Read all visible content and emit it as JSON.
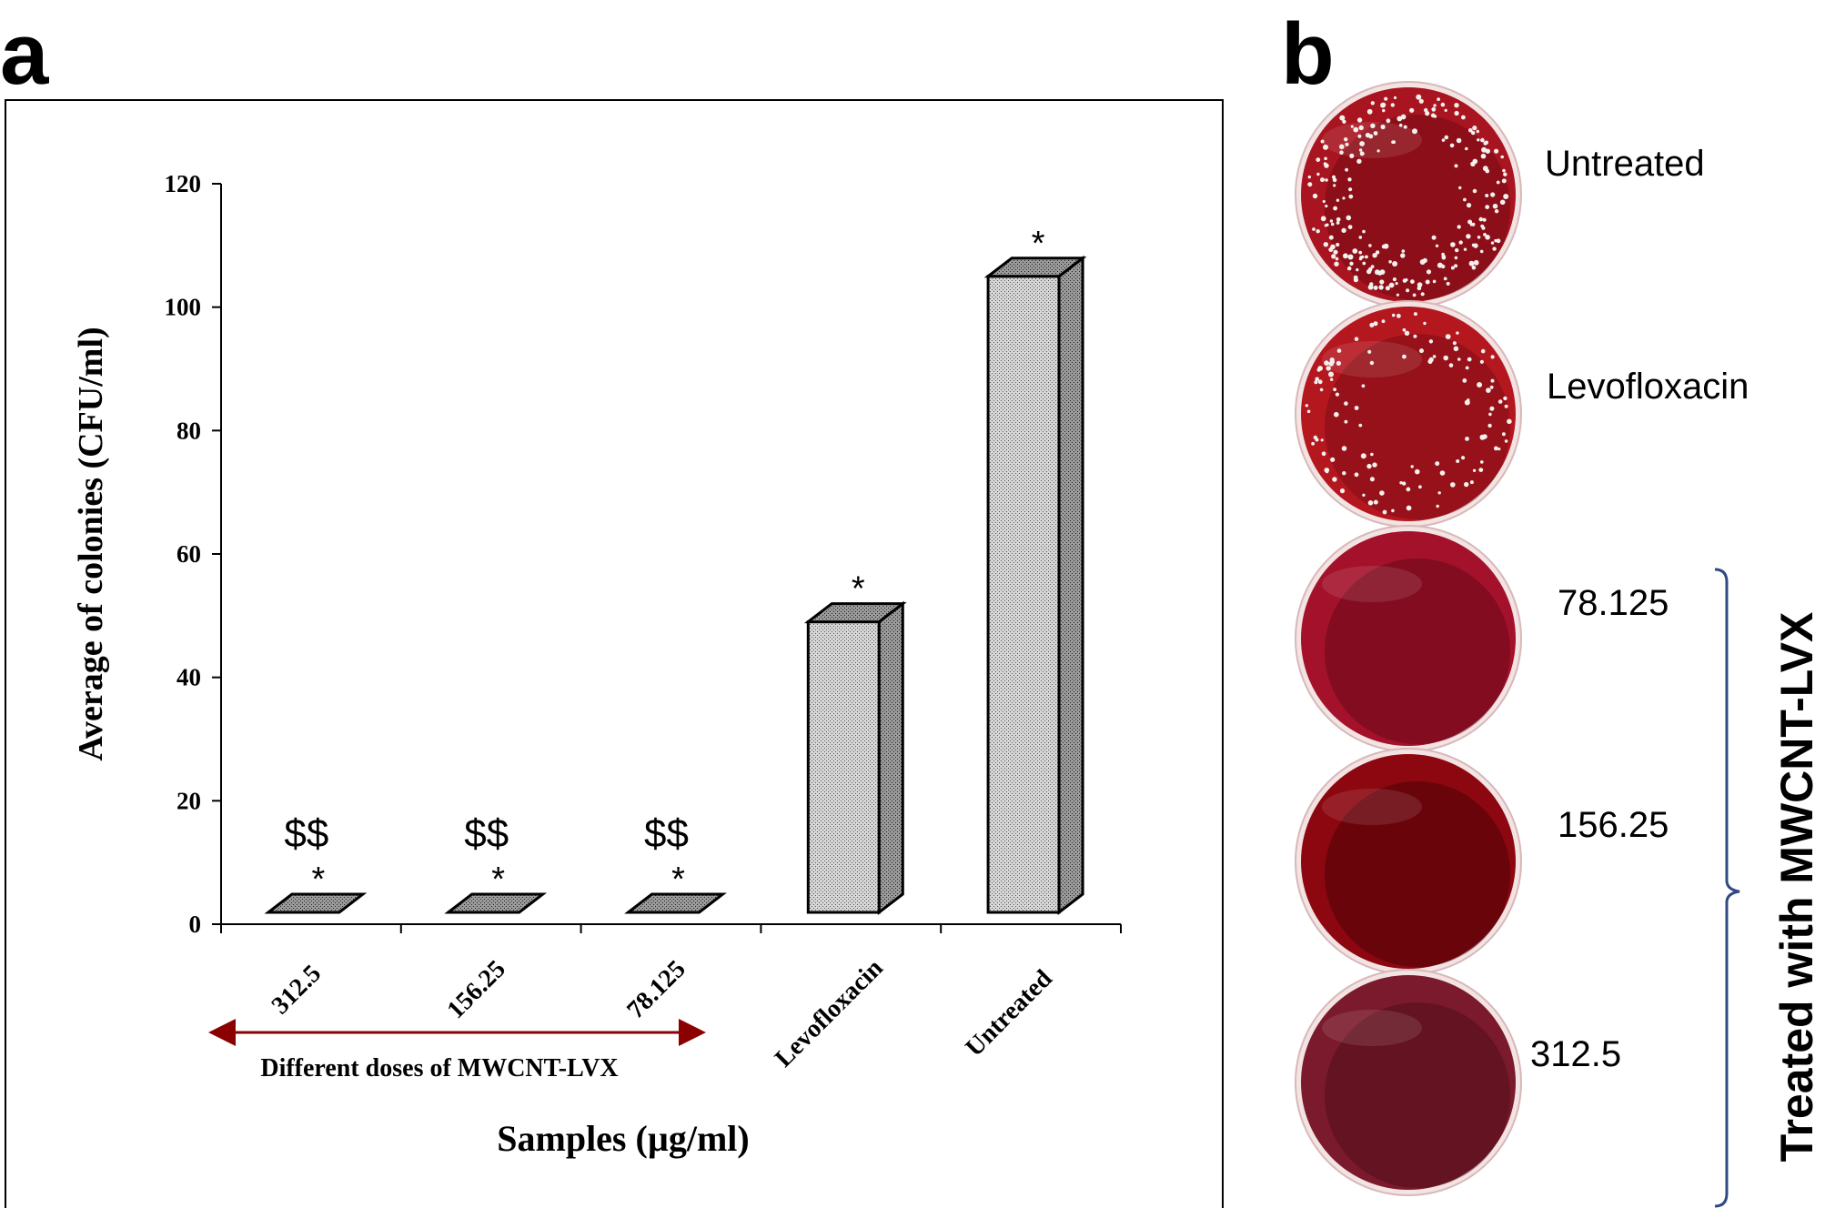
{
  "panel_a": {
    "letter": "a"
  },
  "panel_b": {
    "letter": "b",
    "plates": [
      {
        "label": "Untreated",
        "tone": "#a8141f",
        "dark": "#6a0710",
        "colonies": 230,
        "seed": 7
      },
      {
        "label": "Levofloxacin",
        "tone": "#b5171f",
        "dark": "#720a12",
        "colonies": 120,
        "seed": 19
      },
      {
        "label": "78.125",
        "tone": "#a3112a",
        "dark": "#5e0716",
        "colonies": 0,
        "seed": 3
      },
      {
        "label": "156.25",
        "tone": "#8c0710",
        "dark": "#3f0206",
        "colonies": 0,
        "seed": 5
      },
      {
        "label": "312.5",
        "tone": "#7a1a2c",
        "dark": "#4a0a16",
        "colonies": 0,
        "seed": 11
      }
    ],
    "bracket_label": "Treated with MWCNT-LVX",
    "colors": {
      "bracket": "#2f4a80",
      "colony": "#f4f0ec"
    }
  },
  "chart_data": {
    "type": "bar",
    "title": "",
    "categories": [
      "312.5",
      "156.25",
      "78.125",
      "Levofloxacin",
      "Untreated"
    ],
    "series": [
      {
        "name": "Average of colonies",
        "values": [
          0,
          0,
          0,
          49,
          105
        ]
      }
    ],
    "xlabel": "Samples (µg/ml)",
    "ylabel": "Average of colonies (CFU/ml)",
    "ylim": [
      0,
      120
    ],
    "yticks": [
      0,
      20,
      40,
      60,
      80,
      100,
      120
    ],
    "ytick_labels": [
      "0",
      "20",
      "40",
      "60",
      "80",
      "100",
      "120"
    ],
    "annotations": [
      {
        "category": "312.5",
        "star": "*",
        "mark": "$$"
      },
      {
        "category": "156.25",
        "star": "*",
        "mark": "$$"
      },
      {
        "category": "78.125",
        "star": "*",
        "mark": "$$"
      },
      {
        "category": "Levofloxacin",
        "star": "*",
        "mark": ""
      },
      {
        "category": "Untreated",
        "star": "*",
        "mark": ""
      }
    ],
    "dose_arrow_label": "Different doses of  MWCNT-LVX",
    "grid": false,
    "colors": {
      "bar_face": "#c9c9c9",
      "bar_side": "#8a8a8a",
      "bar_top": "#7a7a7a",
      "arrow": "#8b0000"
    }
  }
}
